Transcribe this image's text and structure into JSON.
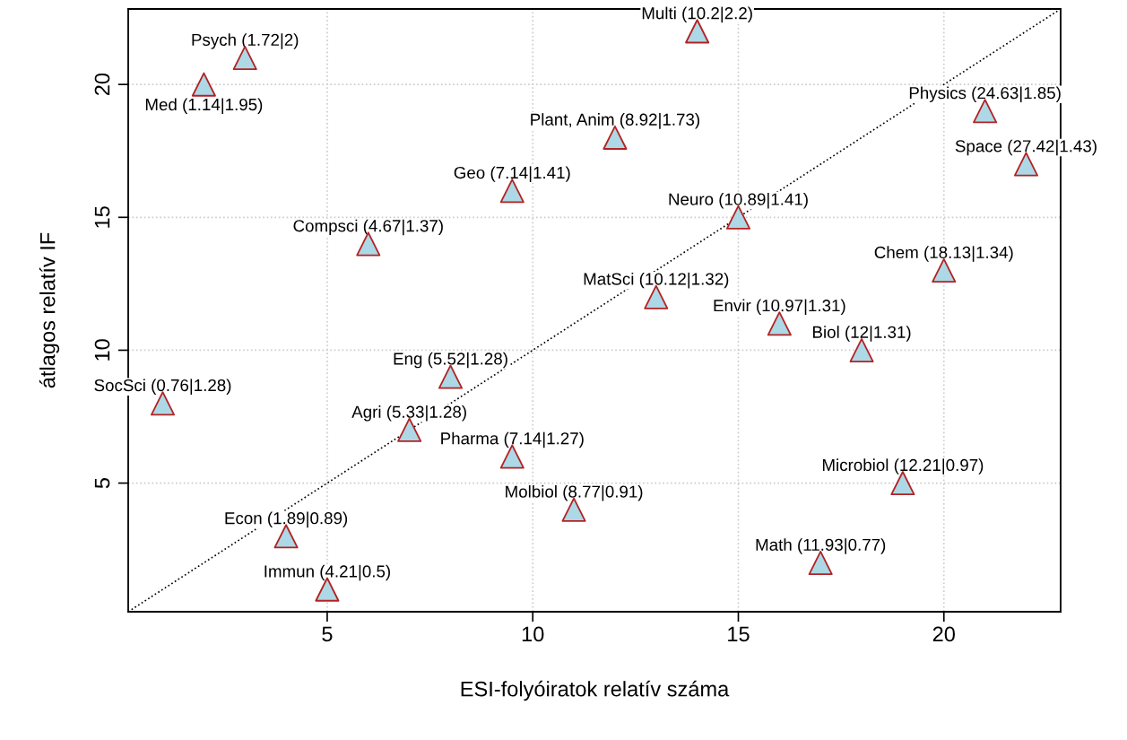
{
  "chart_data": {
    "type": "scatter",
    "xlabel": "ESI-folyóiratok relatív száma",
    "ylabel": "átlagos relatív IF",
    "xlim": [
      0.16,
      22.84
    ],
    "ylim": [
      0.16,
      22.84
    ],
    "xticks": [
      5,
      10,
      15,
      20
    ],
    "yticks": [
      5,
      10,
      15,
      20
    ],
    "grid": true,
    "marker": "triangle",
    "series": [
      {
        "color": "#add8e6",
        "x": [
          14,
          3,
          2,
          21,
          12,
          22,
          9.5,
          15,
          6,
          20,
          13,
          16,
          18,
          8,
          1,
          7,
          9.5,
          19,
          11,
          4,
          17,
          5
        ],
        "values": [
          22,
          21,
          20,
          19,
          18,
          17,
          16,
          15,
          14,
          13,
          12,
          11,
          10,
          9,
          8,
          7,
          6,
          5,
          4,
          3,
          2,
          1
        ]
      },
      {
        "type": "line",
        "color": "#000000",
        "line_style": "dotted",
        "marker": "none",
        "x": [
          0.16,
          22.84
        ],
        "values": [
          0.16,
          22.84
        ]
      }
    ],
    "annotations": [
      {
        "text": "Multi (10.2|2.2)",
        "x": 14,
        "y": 22
      },
      {
        "text": "Psych (1.72|2)",
        "x": 3,
        "y": 21
      },
      {
        "text": "Med (1.14|1.95)",
        "x": 2,
        "y": 20
      },
      {
        "text": "Physics (24.63|1.85)",
        "x": 21,
        "y": 19
      },
      {
        "text": "Plant, Anim (8.92|1.73)",
        "x": 12,
        "y": 18
      },
      {
        "text": "Space (27.42|1.43)",
        "x": 22,
        "y": 17
      },
      {
        "text": "Geo (7.14|1.41)",
        "x": 9.5,
        "y": 16
      },
      {
        "text": "Neuro (10.89|1.41)",
        "x": 15,
        "y": 15
      },
      {
        "text": "Compsci (4.67|1.37)",
        "x": 6,
        "y": 14
      },
      {
        "text": "Chem (18.13|1.34)",
        "x": 20,
        "y": 13
      },
      {
        "text": "MatSci (10.12|1.32)",
        "x": 13,
        "y": 12
      },
      {
        "text": "Envir (10.97|1.31)",
        "x": 16,
        "y": 11
      },
      {
        "text": "Biol (12|1.31)",
        "x": 18,
        "y": 10
      },
      {
        "text": "Eng (5.52|1.28)",
        "x": 8,
        "y": 9
      },
      {
        "text": "SocSci (0.76|1.28)",
        "x": 1,
        "y": 8
      },
      {
        "text": "Agri (5.33|1.28)",
        "x": 7,
        "y": 7
      },
      {
        "text": "Pharma (7.14|1.27)",
        "x": 9.5,
        "y": 6
      },
      {
        "text": "Microbiol (12.21|0.97)",
        "x": 19,
        "y": 5
      },
      {
        "text": "Molbiol (8.77|0.91)",
        "x": 11,
        "y": 4
      },
      {
        "text": "Econ (1.89|0.89)",
        "x": 4,
        "y": 3
      },
      {
        "text": "Math (11.93|0.77)",
        "x": 17,
        "y": 2
      },
      {
        "text": "Immun (4.21|0.5)",
        "x": 5,
        "y": 1
      }
    ]
  }
}
